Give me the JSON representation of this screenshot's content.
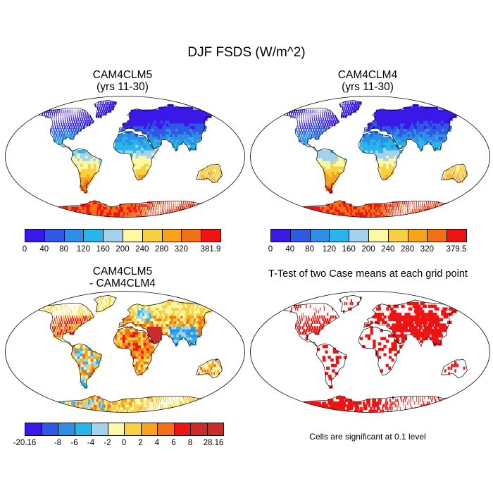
{
  "title": "DJF FSDS (W/m^2)",
  "colors": {
    "seq": [
      "#3a18e8",
      "#2f58e4",
      "#2f8ee6",
      "#27b6ec",
      "#a4d2ec",
      "#fdf8a4",
      "#f8d043",
      "#f9a31b",
      "#f37116",
      "#ee1414",
      "#cd2a2a"
    ],
    "diff": [
      "#3a18e8",
      "#2f58e4",
      "#2f8ee6",
      "#27b6ec",
      "#a4d2ec",
      "#fdf8a4",
      "#f8d043",
      "#f9a31b",
      "#f37116",
      "#ee1414",
      "#cd2a2a"
    ],
    "sig": "#ee1414",
    "ocean": "#ffffff",
    "land_outline": "#000000"
  },
  "panels": [
    {
      "id": "p1",
      "title_line1": "CAM4CLM5",
      "title_line2": "(yrs 11-30)",
      "type": "seq"
    },
    {
      "id": "p2",
      "title_line1": "CAM4CLM4",
      "title_line2": "(yrs 11-30)",
      "type": "seq"
    },
    {
      "id": "p3",
      "title_line1": "CAM4CLM5",
      "title_line2": "- CAM4CLM4",
      "type": "diff"
    },
    {
      "id": "p4",
      "title_line1": "T-Test of two Case means at each grid point",
      "title_line2": "",
      "type": "sig"
    }
  ],
  "colorbars": [
    {
      "id": "cb1",
      "labels": [
        "0",
        "40",
        "80",
        "120",
        "160",
        "200",
        "240",
        "280",
        "320",
        "",
        "381.9"
      ]
    },
    {
      "id": "cb2",
      "labels": [
        "0",
        "40",
        "80",
        "120",
        "160",
        "200",
        "240",
        "280",
        "320",
        "",
        "379.5"
      ]
    },
    {
      "id": "cb3",
      "labels": [
        "-20.16",
        "",
        "-8",
        "-6",
        "-4",
        "-2",
        "0",
        "2",
        "4",
        "6",
        "8",
        "",
        "28.16"
      ]
    }
  ],
  "note": "Cells are significant at 0.1 level",
  "chart_data": {
    "type": "heatmap",
    "title": "DJF FSDS (W/m^2)",
    "projection": "Robinson (global)",
    "maps": [
      {
        "name": "CAM4CLM5 (yrs 11-30)",
        "range": [
          0,
          381.9
        ],
        "levels": [
          0,
          40,
          80,
          120,
          160,
          200,
          240,
          280,
          320,
          381.9
        ],
        "pattern": "Low (0-80) over northern high latitudes, increasing southward; highest (320-381.9) over Antarctica and southern Australia/Africa/South America"
      },
      {
        "name": "CAM4CLM4 (yrs 11-30)",
        "range": [
          0,
          379.5
        ],
        "levels": [
          0,
          40,
          80,
          120,
          160,
          200,
          240,
          280,
          320,
          379.5
        ],
        "pattern": "Nearly identical to CAM4CLM5"
      },
      {
        "name": "CAM4CLM5 - CAM4CLM4",
        "range": [
          -20.16,
          28.16
        ],
        "levels": [
          -20.16,
          -8,
          -6,
          -4,
          -2,
          0,
          2,
          4,
          6,
          8,
          28.16
        ],
        "pattern": "Mostly positive (2-8) over land; strongest positive over Middle East and central Africa; negative patches over South/Southeast Asia, eastern Europe, South America"
      },
      {
        "name": "T-Test of two Case means at each grid point",
        "significance_level": 0.1,
        "pattern": "Significant cells over North America, Europe, Middle East, Siberia, Africa, South America, Australia, Antarctica coast"
      }
    ]
  }
}
